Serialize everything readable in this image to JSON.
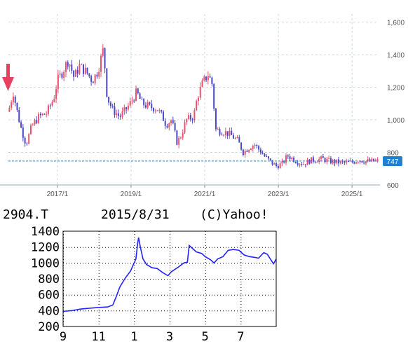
{
  "chart_data": [
    {
      "type": "candlestick",
      "title": "",
      "xlabel": "",
      "ylabel": "",
      "ylim": [
        600,
        1650
      ],
      "y_ticks": [
        600,
        800,
        1000,
        1200,
        1400,
        1600
      ],
      "x_tick_labels": [
        "2017/1",
        "2019/1",
        "2021/1",
        "2023/1",
        "2025/1"
      ],
      "x_tick_years": [
        2017.0,
        2019.0,
        2021.0,
        2023.0,
        2025.0
      ],
      "x_range": [
        2015.67,
        2025.72
      ],
      "current_value": 747,
      "grid": true,
      "colors": {
        "up": "#e8526f",
        "down": "#4a47c6",
        "current": "#1f7fd1",
        "arrow": "#e8405f",
        "grid": "#cfd8e3"
      },
      "price_path": [
        [
          2015.67,
          1050
        ],
        [
          2015.8,
          1170
        ],
        [
          2015.9,
          1060
        ],
        [
          2016.0,
          960
        ],
        [
          2016.08,
          900
        ],
        [
          2016.15,
          850
        ],
        [
          2016.3,
          960
        ],
        [
          2016.5,
          1020
        ],
        [
          2016.7,
          1040
        ],
        [
          2016.9,
          1130
        ],
        [
          2017.0,
          1240
        ],
        [
          2017.15,
          1300
        ],
        [
          2017.3,
          1370
        ],
        [
          2017.45,
          1260
        ],
        [
          2017.6,
          1330
        ],
        [
          2017.8,
          1290
        ],
        [
          2017.95,
          1240
        ],
        [
          2018.1,
          1300
        ],
        [
          2018.25,
          1440
        ],
        [
          2018.35,
          1140
        ],
        [
          2018.5,
          1060
        ],
        [
          2018.7,
          1020
        ],
        [
          2018.85,
          1060
        ],
        [
          2019.0,
          1110
        ],
        [
          2019.15,
          1170
        ],
        [
          2019.3,
          1100
        ],
        [
          2019.5,
          1080
        ],
        [
          2019.7,
          1070
        ],
        [
          2019.85,
          1020
        ],
        [
          2019.95,
          970
        ],
        [
          2020.1,
          1000
        ],
        [
          2020.25,
          860
        ],
        [
          2020.35,
          900
        ],
        [
          2020.5,
          1000
        ],
        [
          2020.7,
          1020
        ],
        [
          2020.8,
          1140
        ],
        [
          2020.95,
          1230
        ],
        [
          2021.1,
          1280
        ],
        [
          2021.2,
          1220
        ],
        [
          2021.3,
          940
        ],
        [
          2021.45,
          930
        ],
        [
          2021.6,
          920
        ],
        [
          2021.75,
          900
        ],
        [
          2021.9,
          870
        ],
        [
          2022.05,
          800
        ],
        [
          2022.2,
          830
        ],
        [
          2022.35,
          850
        ],
        [
          2022.5,
          810
        ],
        [
          2022.65,
          770
        ],
        [
          2022.8,
          740
        ],
        [
          2022.95,
          715
        ],
        [
          2023.1,
          730
        ],
        [
          2023.25,
          780
        ],
        [
          2023.4,
          760
        ],
        [
          2023.55,
          740
        ],
        [
          2023.7,
          730
        ],
        [
          2023.85,
          750
        ],
        [
          2024.0,
          755
        ],
        [
          2024.2,
          760
        ],
        [
          2024.4,
          745
        ],
        [
          2024.6,
          740
        ],
        [
          2024.8,
          735
        ],
        [
          2025.0,
          740
        ],
        [
          2025.2,
          755
        ],
        [
          2025.35,
          745
        ],
        [
          2025.5,
          745
        ],
        [
          2025.65,
          747
        ]
      ]
    },
    {
      "type": "line",
      "title": "2904.T    2015/8/31   (C)Yahoo!",
      "xlabel": "",
      "ylabel": "",
      "ylim": [
        200,
        1400
      ],
      "y_ticks": [
        200,
        400,
        600,
        800,
        1000,
        1200,
        1400
      ],
      "x_tick_labels": [
        "9",
        "11",
        "1",
        "3",
        "5",
        "7"
      ],
      "x_tick_positions": [
        0,
        2,
        4,
        6,
        8,
        10
      ],
      "x_range": [
        0,
        12
      ],
      "colors": {
        "line": "#2222ff",
        "axis": "#000000",
        "grid": "#000000"
      },
      "series": [
        {
          "values": [
            [
              0.0,
              390
            ],
            [
              0.5,
              400
            ],
            [
              1.0,
              420
            ],
            [
              1.5,
              430
            ],
            [
              2.0,
              440
            ],
            [
              2.5,
              445
            ],
            [
              2.8,
              470
            ],
            [
              3.0,
              580
            ],
            [
              3.2,
              700
            ],
            [
              3.5,
              810
            ],
            [
              3.8,
              900
            ],
            [
              4.0,
              1000
            ],
            [
              4.1,
              1050
            ],
            [
              4.2,
              1250
            ],
            [
              4.25,
              1320
            ],
            [
              4.35,
              1200
            ],
            [
              4.5,
              1050
            ],
            [
              4.7,
              980
            ],
            [
              5.0,
              940
            ],
            [
              5.3,
              930
            ],
            [
              5.6,
              880
            ],
            [
              5.9,
              840
            ],
            [
              6.1,
              890
            ],
            [
              6.5,
              950
            ],
            [
              6.8,
              1000
            ],
            [
              7.0,
              1010
            ],
            [
              7.1,
              1220
            ],
            [
              7.3,
              1180
            ],
            [
              7.5,
              1140
            ],
            [
              7.8,
              1120
            ],
            [
              8.0,
              1080
            ],
            [
              8.3,
              1040
            ],
            [
              8.5,
              1000
            ],
            [
              8.7,
              1050
            ],
            [
              9.0,
              1080
            ],
            [
              9.3,
              1160
            ],
            [
              9.6,
              1170
            ],
            [
              9.9,
              1160
            ],
            [
              10.2,
              1100
            ],
            [
              10.5,
              1080
            ],
            [
              10.8,
              1070
            ],
            [
              11.0,
              1060
            ],
            [
              11.3,
              1130
            ],
            [
              11.5,
              1110
            ],
            [
              11.7,
              1040
            ],
            [
              11.85,
              990
            ],
            [
              12.0,
              1050
            ]
          ]
        }
      ]
    }
  ],
  "top_chart": {
    "price_label": "747"
  },
  "bottom_chart": {
    "ticker": "2904.T",
    "date": "2015/8/31",
    "source": "(C)Yahoo!"
  }
}
